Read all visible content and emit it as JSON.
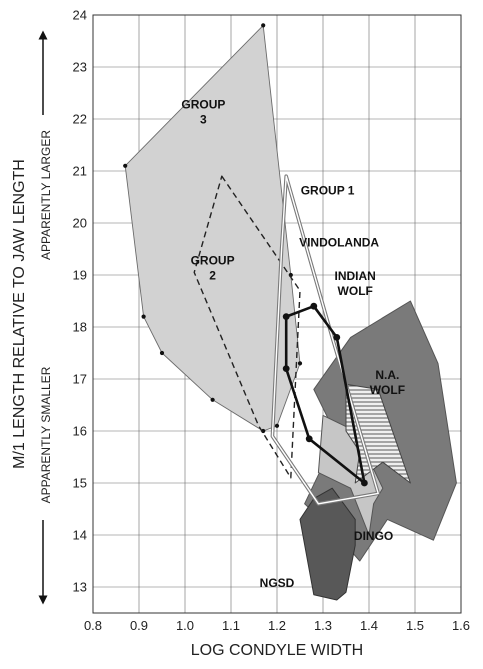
{
  "chart_data": {
    "type": "scatter",
    "title": "",
    "xlabel": "LOG CONDYLE WIDTH",
    "ylabel": "M/1 LENGTH RELATIVE TO JAW LENGTH",
    "y_side_notes": {
      "upper": "APPARENTLY LARGER",
      "lower": "APPARENTLY SMALLER"
    },
    "xlim": [
      0.8,
      1.6
    ],
    "ylim": [
      12.5,
      24
    ],
    "x_ticks": [
      "0.8",
      "0.9",
      "1.0",
      "1.1",
      "1.2",
      "1.3",
      "1.4",
      "1.5",
      "1.6"
    ],
    "y_ticks": [
      "13",
      "14",
      "15",
      "16",
      "17",
      "18",
      "19",
      "20",
      "21",
      "22",
      "23",
      "24"
    ],
    "grid": true,
    "series": [
      {
        "name": "N.A. WOLF",
        "label_lines": [
          "N.A.",
          "WOLF"
        ],
        "label_pos": [
          1.44,
          17.0
        ],
        "fill": "#7a7a7a",
        "stroke": "#555555",
        "dash": "",
        "stroke_width": 1,
        "markers": false,
        "points": [
          [
            1.49,
            18.5
          ],
          [
            1.55,
            17.3
          ],
          [
            1.59,
            15.0
          ],
          [
            1.54,
            13.9
          ],
          [
            1.44,
            14.3
          ],
          [
            1.38,
            13.5
          ],
          [
            1.32,
            14.1
          ],
          [
            1.26,
            14.6
          ],
          [
            1.33,
            15.9
          ],
          [
            1.28,
            16.8
          ],
          [
            1.36,
            17.8
          ]
        ]
      },
      {
        "name": "DINGO",
        "label_lines": [
          "DINGO"
        ],
        "label_pos": [
          1.41,
          13.9
        ],
        "fill": "#c6c6c6",
        "stroke": "#555555",
        "dash": "",
        "stroke_width": 1,
        "markers": false,
        "points": [
          [
            1.3,
            16.3
          ],
          [
            1.37,
            16.0
          ],
          [
            1.43,
            14.9
          ],
          [
            1.41,
            14.6
          ],
          [
            1.4,
            14.0
          ],
          [
            1.36,
            14.9
          ],
          [
            1.29,
            15.2
          ]
        ]
      },
      {
        "name": "NGSD",
        "label_lines": [
          "NGSD"
        ],
        "label_pos": [
          1.2,
          13.0
        ],
        "fill": "#585858",
        "stroke": "#333333",
        "dash": "",
        "stroke_width": 1,
        "markers": false,
        "points": [
          [
            1.32,
            14.9
          ],
          [
            1.37,
            14.3
          ],
          [
            1.37,
            13.8
          ],
          [
            1.35,
            12.9
          ],
          [
            1.33,
            12.75
          ],
          [
            1.28,
            12.85
          ],
          [
            1.25,
            14.3
          ],
          [
            1.28,
            14.7
          ]
        ]
      },
      {
        "name": "INDIAN WOLF",
        "label_lines": [
          "INDIAN",
          "WOLF"
        ],
        "label_pos": [
          1.37,
          18.9
        ],
        "fill": "url(#hatch)",
        "stroke": "#444444",
        "dash": "",
        "stroke_width": 1,
        "markers": false,
        "points": [
          [
            1.35,
            16.9
          ],
          [
            1.42,
            16.8
          ],
          [
            1.49,
            15.0
          ],
          [
            1.43,
            15.4
          ],
          [
            1.37,
            15.0
          ],
          [
            1.38,
            15.6
          ],
          [
            1.35,
            16.0
          ]
        ]
      },
      {
        "name": "GROUP 3",
        "label_lines": [
          "GROUP",
          "3"
        ],
        "label_pos": [
          1.04,
          22.2
        ],
        "fill": "#d2d2d2",
        "stroke": "#6b6b6b",
        "dash": "",
        "stroke_width": 0.9,
        "markers": true,
        "points": [
          [
            1.17,
            23.8
          ],
          [
            1.23,
            19.0
          ],
          [
            1.25,
            17.3
          ],
          [
            1.2,
            16.1
          ],
          [
            1.17,
            16.0
          ],
          [
            1.06,
            16.6
          ],
          [
            0.95,
            17.5
          ],
          [
            0.91,
            18.2
          ],
          [
            0.87,
            21.1
          ]
        ]
      },
      {
        "name": "GROUP 2",
        "label_lines": [
          "GROUP",
          "2"
        ],
        "label_pos": [
          1.06,
          19.2
        ],
        "fill": "none",
        "stroke": "#222222",
        "dash": "6,4",
        "stroke_width": 1.4,
        "markers": false,
        "points": [
          [
            1.08,
            20.9
          ],
          [
            1.25,
            18.7
          ],
          [
            1.23,
            15.1
          ],
          [
            1.16,
            16.1
          ],
          [
            1.02,
            19.05
          ]
        ]
      },
      {
        "name": "GROUP 1",
        "label_lines": [
          "GROUP 1"
        ],
        "label_pos": [
          1.31,
          20.55
        ],
        "fill": "none",
        "stroke": "#7a7a7a",
        "dash": "",
        "stroke_width": 3.6,
        "inner_stroke": "#ffffff",
        "markers": false,
        "points": [
          [
            1.22,
            20.9
          ],
          [
            1.32,
            17.8
          ],
          [
            1.42,
            14.8
          ],
          [
            1.29,
            14.6
          ],
          [
            1.19,
            15.9
          ],
          [
            1.21,
            19.5
          ]
        ]
      },
      {
        "name": "VINDOLANDA",
        "label_lines": [
          "VINDOLANDA"
        ],
        "label_pos": [
          1.335,
          19.55
        ],
        "fill": "none",
        "stroke": "#111111",
        "dash": "",
        "stroke_width": 2.6,
        "markers": true,
        "points": [
          [
            1.28,
            18.4
          ],
          [
            1.33,
            17.8
          ],
          [
            1.39,
            15.0
          ],
          [
            1.27,
            15.85
          ],
          [
            1.22,
            17.2
          ],
          [
            1.22,
            18.2
          ]
        ]
      }
    ]
  }
}
